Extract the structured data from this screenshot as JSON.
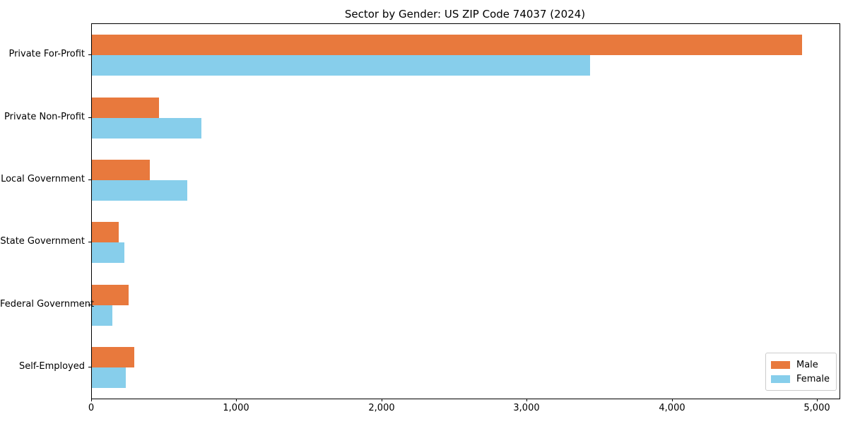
{
  "title": "Sector by Gender: US ZIP Code 74037 (2024)",
  "colors": {
    "male": "#e8793d",
    "female": "#87ceeb",
    "spine": "#000000",
    "legend_border": "#cccccc",
    "background": "#ffffff"
  },
  "legend": {
    "position": "lower right",
    "items": [
      {
        "label": "Male",
        "color": "#e8793d"
      },
      {
        "label": "Female",
        "color": "#87ceeb"
      }
    ]
  },
  "chart_data": {
    "type": "bar",
    "orientation": "horizontal",
    "title": "Sector by Gender: US ZIP Code 74037 (2024)",
    "categories": [
      "Private For-Profit",
      "Private Non-Profit",
      "Local Government",
      "State Government",
      "Federal Government",
      "Self-Employed"
    ],
    "series": [
      {
        "name": "Male",
        "color": "#e8793d",
        "values": [
          4890,
          460,
          400,
          185,
          255,
          290
        ]
      },
      {
        "name": "Female",
        "color": "#87ceeb",
        "values": [
          3430,
          755,
          655,
          225,
          140,
          235
        ]
      }
    ],
    "xlabel": "",
    "ylabel": "",
    "xlim": [
      0,
      5150
    ],
    "xticks": [
      0,
      1000,
      2000,
      3000,
      4000,
      5000
    ],
    "xtick_labels": [
      "0",
      "1,000",
      "2,000",
      "3,000",
      "4,000",
      "5,000"
    ],
    "grid": false,
    "legend_position": "lower right"
  }
}
